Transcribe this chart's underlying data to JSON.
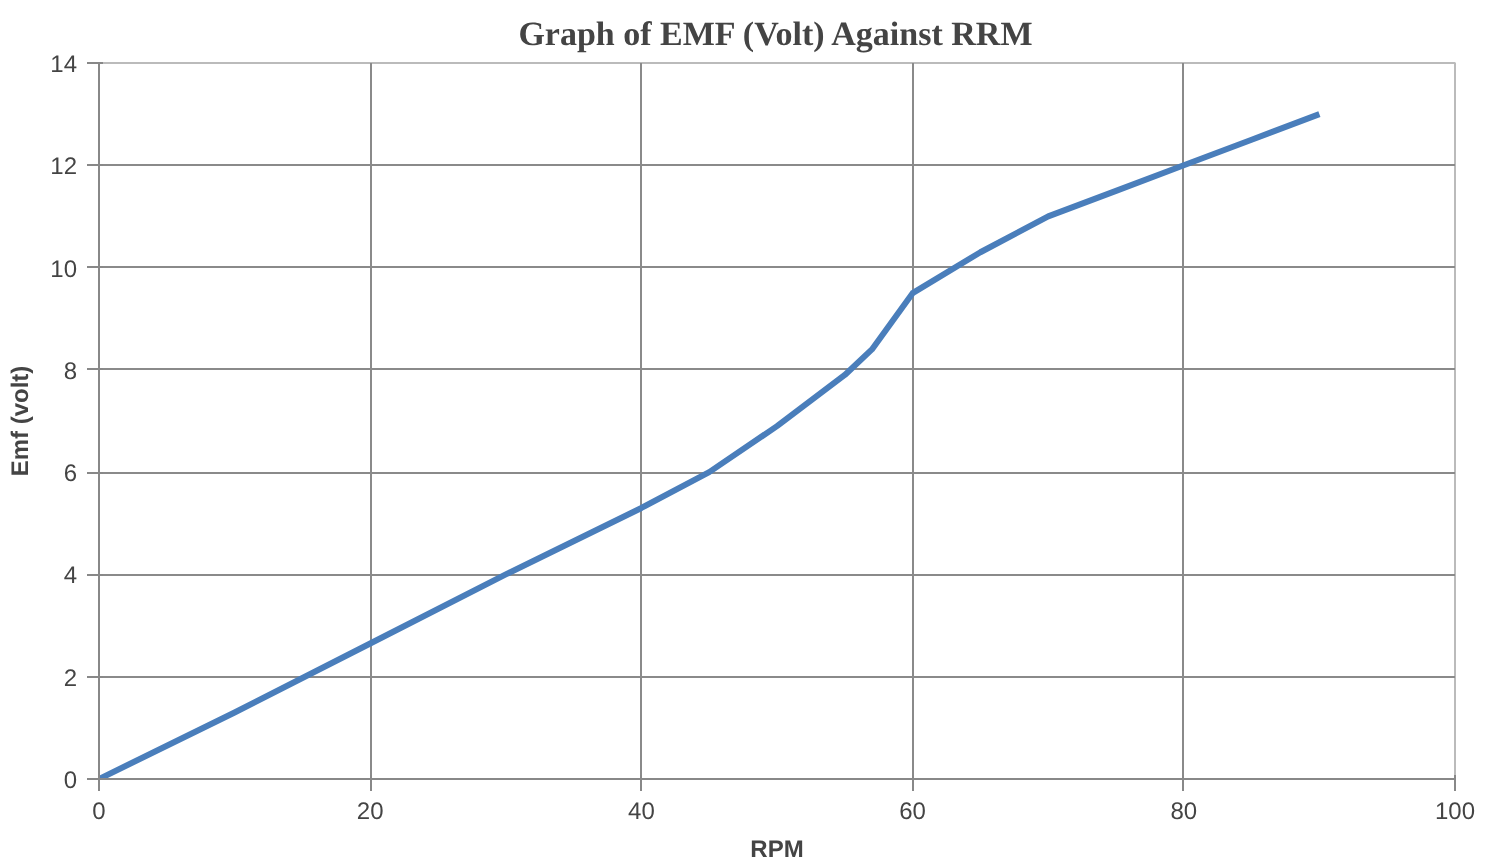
{
  "chart_data": {
    "type": "line",
    "title": "Graph of EMF (Volt) Against RRM",
    "xlabel": "RPM",
    "ylabel": "Emf (volt)",
    "x": [
      0,
      10,
      20,
      30,
      40,
      45,
      50,
      55,
      57,
      60,
      65,
      70,
      75,
      80,
      85,
      90
    ],
    "series": [
      {
        "color": "#4a7ebb",
        "values": [
          0,
          1.3,
          2.65,
          4.0,
          5.3,
          6.0,
          6.9,
          7.9,
          8.4,
          9.5,
          10.3,
          11.0,
          11.5,
          12.0,
          12.5,
          13.0
        ]
      }
    ],
    "xlim": [
      0,
      100
    ],
    "xticks": [
      0,
      20,
      40,
      60,
      80,
      100
    ],
    "ylim": [
      0,
      14
    ],
    "yticks": [
      0,
      2,
      4,
      6,
      8,
      10,
      12,
      14
    ],
    "grid": true,
    "marker": "none",
    "line_style": "solid"
  }
}
